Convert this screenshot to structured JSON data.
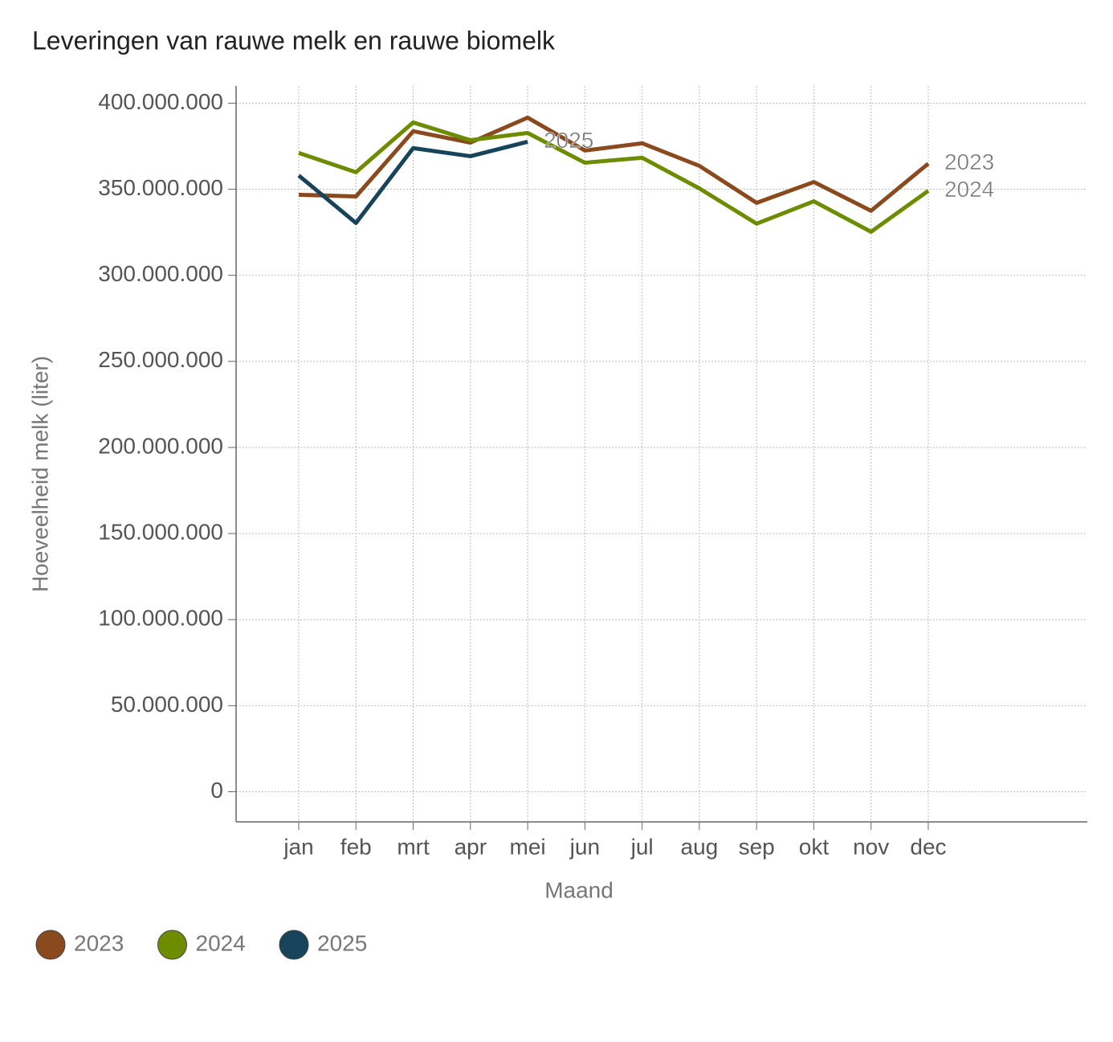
{
  "chart_data": {
    "type": "line",
    "title": "Leveringen van rauwe melk en rauwe biomelk",
    "x_label": "Maand",
    "y_label": "Hoeveelheid melk (liter)",
    "categories": [
      "jan",
      "feb",
      "mrt",
      "apr",
      "mei",
      "jun",
      "jul",
      "aug",
      "sep",
      "okt",
      "nov",
      "dec"
    ],
    "series": [
      {
        "name": "2023",
        "color": "#8b4a1e",
        "values": [
          346800000,
          345800000,
          383700000,
          377100000,
          391600000,
          372500000,
          376700000,
          363600000,
          342100000,
          354200000,
          337500000,
          364900000
        ]
      },
      {
        "name": "2024",
        "color": "#6e8c00",
        "values": [
          371100000,
          359900000,
          388800000,
          378500000,
          382700000,
          365400000,
          368300000,
          350500000,
          330000000,
          343000000,
          325300000,
          349100000
        ]
      },
      {
        "name": "2025",
        "color": "#17445a",
        "values": [
          358000000,
          330400000,
          373900000,
          369200000,
          377600000,
          null,
          null,
          null,
          null,
          null,
          null,
          null
        ]
      }
    ],
    "ylim": [
      -17500000,
      410000000
    ],
    "yticks": [
      0,
      {
        "value": 50000000,
        "label": "50.000.000"
      },
      {
        "value": 100000000,
        "label": "100.000.000"
      },
      {
        "value": 150000000,
        "label": "150.000.000"
      },
      {
        "value": 200000000,
        "label": "200.000.000"
      },
      {
        "value": 250000000,
        "label": "250.000.000"
      },
      {
        "value": 300000000,
        "label": "300.000.000"
      },
      {
        "value": 350000000,
        "label": "350.000.000"
      },
      {
        "value": 400000000,
        "label": "400.000.000"
      }
    ],
    "grid": true,
    "legend": "bottom-left"
  }
}
